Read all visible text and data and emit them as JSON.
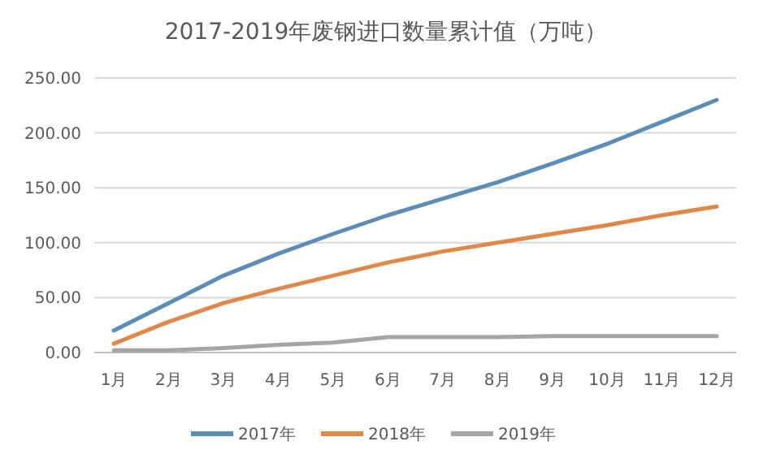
{
  "chart_data": {
    "type": "line",
    "title": "2017-2019年废钢进口数量累计值（万吨）",
    "categories": [
      "1月",
      "2月",
      "3月",
      "4月",
      "5月",
      "6月",
      "7月",
      "8月",
      "9月",
      "10月",
      "11月",
      "12月"
    ],
    "series": [
      {
        "name": "2017年",
        "color": "#5b8db8",
        "values": [
          20,
          45,
          70,
          90,
          108,
          125,
          140,
          155,
          172,
          190,
          210,
          230
        ]
      },
      {
        "name": "2018年",
        "color": "#e0874a",
        "values": [
          8,
          28,
          45,
          58,
          70,
          82,
          92,
          100,
          108,
          116,
          125,
          133
        ]
      },
      {
        "name": "2019年",
        "color": "#a5a5a5",
        "values": [
          2,
          2,
          4,
          7,
          9,
          14,
          14,
          14,
          15,
          15,
          15,
          15
        ]
      }
    ],
    "ylim": [
      0,
      250
    ],
    "yticks": [
      {
        "value": 0,
        "label": "0.00"
      },
      {
        "value": 50,
        "label": "50.00"
      },
      {
        "value": 100,
        "label": "100.00"
      },
      {
        "value": 150,
        "label": "150.00"
      },
      {
        "value": 200,
        "label": "200.00"
      },
      {
        "value": 250,
        "label": "250.00"
      }
    ],
    "grid": "y",
    "legend": "bottom",
    "marker": "none",
    "line_style": "solid"
  }
}
